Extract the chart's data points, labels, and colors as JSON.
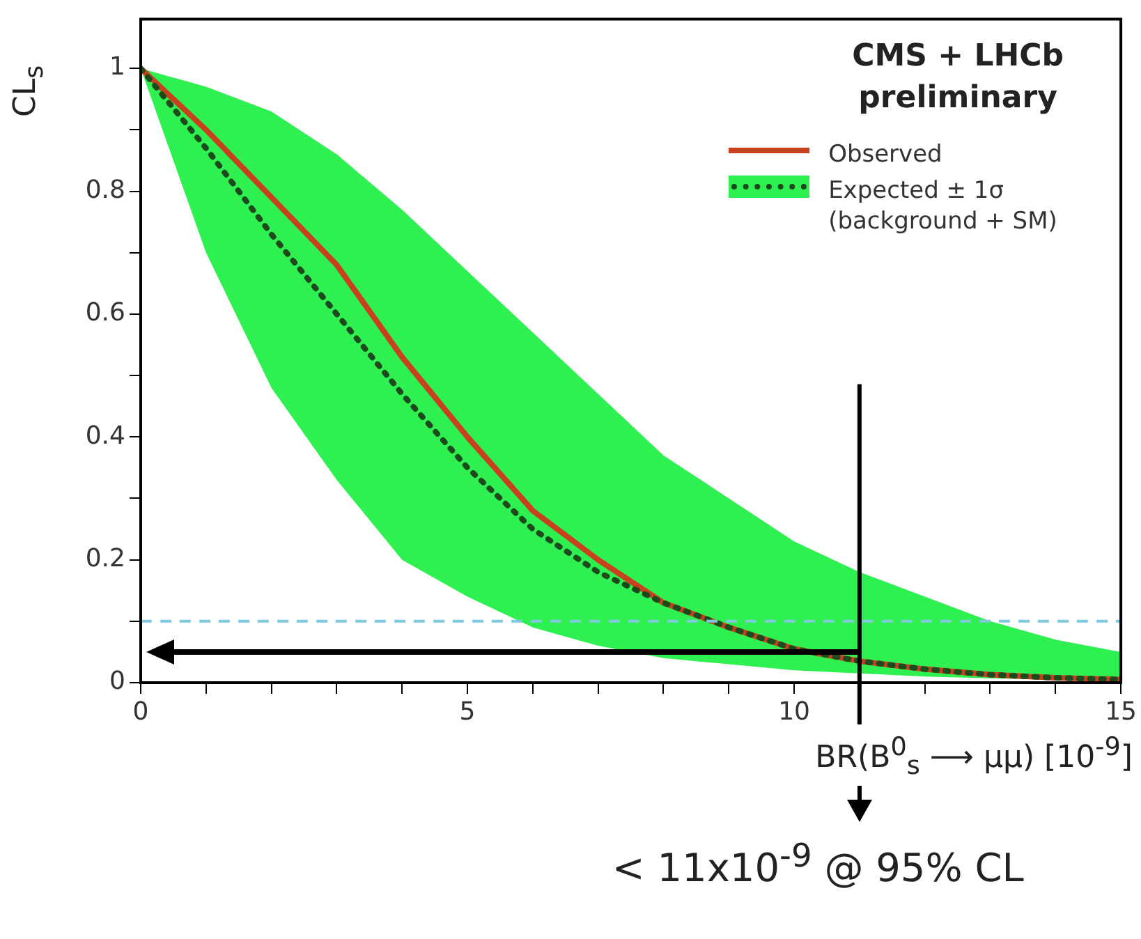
{
  "chart_data": {
    "type": "line",
    "title": "CMS + LHCb preliminary",
    "xlabel": "BR(B$^{0}$$_{s}$ ⟶ μμ) [10$^{-9}$]",
    "ylabel": "CL$_{s}$",
    "x": [
      0,
      1,
      2,
      3,
      4,
      5,
      6,
      7,
      8,
      9,
      10,
      11,
      12,
      13,
      14,
      15
    ],
    "series": [
      {
        "name": "Observed",
        "color": "#c8401e",
        "line_style": "solid",
        "values": [
          1,
          0.9,
          0.79,
          0.68,
          0.53,
          0.4,
          0.28,
          0.2,
          0.13,
          0.09,
          0.055,
          0.035,
          0.022,
          0.013,
          0.008,
          0.005
        ]
      },
      {
        "name": "Expected ± 1σ (background + SM)",
        "color": "#1c4a1c",
        "line_style": "dotted",
        "values": [
          1,
          0.87,
          0.73,
          0.6,
          0.47,
          0.35,
          0.25,
          0.18,
          0.13,
          0.09,
          0.055,
          0.035,
          0.022,
          0.013,
          0.008,
          0.005
        ],
        "lower": [
          1,
          0.7,
          0.48,
          0.33,
          0.2,
          0.14,
          0.09,
          0.06,
          0.04,
          0.03,
          0.02,
          0.015,
          0.01,
          0.007,
          0.005,
          0.003
        ],
        "upper": [
          1,
          0.97,
          0.93,
          0.86,
          0.77,
          0.67,
          0.57,
          0.47,
          0.37,
          0.3,
          0.23,
          0.18,
          0.14,
          0.1,
          0.07,
          0.05
        ]
      }
    ],
    "xlim": [
      0,
      15
    ],
    "xticks": [
      0,
      {
        "value": 1,
        "label": null
      },
      {
        "value": 2,
        "label": null
      },
      {
        "value": 3,
        "label": null
      },
      {
        "value": 4,
        "label": null
      },
      5,
      {
        "value": 6,
        "label": null
      },
      {
        "value": 7,
        "label": null
      },
      {
        "value": 8,
        "label": null
      },
      {
        "value": 9,
        "label": null
      },
      10,
      {
        "value": 11,
        "label": null
      },
      {
        "value": 12,
        "label": null
      },
      {
        "value": 13,
        "label": null
      },
      {
        "value": 14,
        "label": null
      },
      15
    ],
    "ylim": [
      0,
      1.08
    ],
    "yticks": [
      0,
      {
        "value": 0.1,
        "label": null
      },
      0.2,
      {
        "value": 0.3,
        "label": null
      },
      0.4,
      {
        "value": 0.5,
        "label": null
      },
      0.6,
      {
        "value": 0.7,
        "label": null
      },
      0.8,
      {
        "value": 0.9,
        "label": null
      },
      1
    ],
    "ref_lines": [
      {
        "axis": "y",
        "value": 0.1,
        "color": "#80c8dc",
        "line_style": "dashed"
      },
      {
        "axis": "y",
        "value": 0.05,
        "color": "#000000",
        "line_style": "solid"
      },
      {
        "axis": "x",
        "value": 11,
        "color": "#000000",
        "line_style": "solid"
      }
    ],
    "annotations": [
      "< 11x10$^{-9}$ @ 95% CL"
    ],
    "grid": false,
    "legend": "top right",
    "marker": "none"
  }
}
